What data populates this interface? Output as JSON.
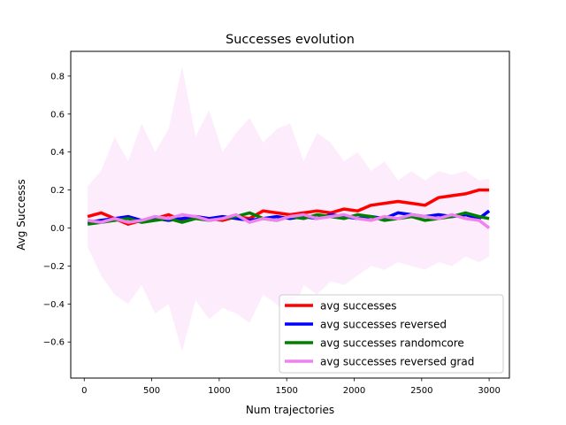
{
  "chart_data": {
    "type": "line",
    "title": "Successes evolution",
    "xlabel": "Num trajectories",
    "ylabel": "Avg Successs",
    "xlim": [
      -100,
      3150
    ],
    "ylim": [
      -0.79,
      0.93
    ],
    "x_ticks": [
      0,
      500,
      1000,
      1500,
      2000,
      2500,
      3000
    ],
    "y_ticks": [
      -0.6,
      -0.4,
      -0.2,
      0.0,
      0.2,
      0.4,
      0.6,
      0.8
    ],
    "x_tick_labels": [
      "0",
      "500",
      "1000",
      "1500",
      "2000",
      "2500",
      "3000"
    ],
    "y_tick_labels": [
      "−0.6",
      "−0.4",
      "−0.2",
      "0.0",
      "0.2",
      "0.4",
      "0.6",
      "0.8"
    ],
    "grid": false,
    "legend_position": "lower-right",
    "x": [
      25,
      125,
      225,
      325,
      425,
      525,
      625,
      725,
      825,
      925,
      1025,
      1125,
      1225,
      1325,
      1425,
      1525,
      1625,
      1725,
      1825,
      1925,
      2025,
      2125,
      2225,
      2325,
      2425,
      2525,
      2625,
      2725,
      2825,
      2925,
      3000
    ],
    "series": [
      {
        "name": "avg successes",
        "color": "#ff0000",
        "values": [
          0.06,
          0.08,
          0.05,
          0.02,
          0.04,
          0.05,
          0.07,
          0.04,
          0.06,
          0.05,
          0.04,
          0.06,
          0.05,
          0.09,
          0.08,
          0.07,
          0.08,
          0.09,
          0.08,
          0.1,
          0.09,
          0.12,
          0.13,
          0.14,
          0.13,
          0.12,
          0.16,
          0.17,
          0.18,
          0.2,
          0.2
        ]
      },
      {
        "name": "avg successes reversed",
        "color": "#0000ff",
        "values": [
          0.03,
          0.04,
          0.05,
          0.06,
          0.04,
          0.05,
          0.04,
          0.05,
          0.06,
          0.05,
          0.06,
          0.05,
          0.04,
          0.05,
          0.06,
          0.05,
          0.06,
          0.05,
          0.07,
          0.06,
          0.05,
          0.06,
          0.05,
          0.08,
          0.07,
          0.06,
          0.07,
          0.06,
          0.07,
          0.05,
          0.09
        ]
      },
      {
        "name": "avg successes randomcore",
        "color": "#008000",
        "values": [
          0.02,
          0.03,
          0.04,
          0.05,
          0.03,
          0.04,
          0.05,
          0.03,
          0.05,
          0.04,
          0.05,
          0.06,
          0.08,
          0.05,
          0.04,
          0.06,
          0.05,
          0.07,
          0.06,
          0.05,
          0.07,
          0.06,
          0.04,
          0.05,
          0.06,
          0.04,
          0.05,
          0.06,
          0.08,
          0.06,
          0.05
        ]
      },
      {
        "name": "avg successes reversed grad",
        "color": "#ee82ee",
        "values": [
          0.04,
          0.03,
          0.05,
          0.03,
          0.04,
          0.06,
          0.05,
          0.07,
          0.06,
          0.04,
          0.05,
          0.07,
          0.03,
          0.05,
          0.04,
          0.06,
          0.07,
          0.05,
          0.06,
          0.07,
          0.05,
          0.04,
          0.06,
          0.05,
          0.07,
          0.06,
          0.05,
          0.07,
          0.05,
          0.04,
          0.0
        ]
      }
    ],
    "band": {
      "color": "#ee82ee",
      "upper": [
        0.22,
        0.3,
        0.48,
        0.35,
        0.55,
        0.4,
        0.52,
        0.85,
        0.48,
        0.62,
        0.4,
        0.5,
        0.58,
        0.45,
        0.52,
        0.55,
        0.35,
        0.5,
        0.45,
        0.35,
        0.4,
        0.3,
        0.35,
        0.25,
        0.3,
        0.25,
        0.3,
        0.28,
        0.3,
        0.25,
        0.26
      ],
      "lower": [
        -0.1,
        -0.25,
        -0.35,
        -0.4,
        -0.3,
        -0.45,
        -0.4,
        -0.65,
        -0.38,
        -0.48,
        -0.42,
        -0.45,
        -0.5,
        -0.35,
        -0.4,
        -0.48,
        -0.3,
        -0.35,
        -0.28,
        -0.3,
        -0.25,
        -0.2,
        -0.22,
        -0.18,
        -0.2,
        -0.22,
        -0.18,
        -0.2,
        -0.15,
        -0.18,
        -0.15
      ]
    }
  }
}
